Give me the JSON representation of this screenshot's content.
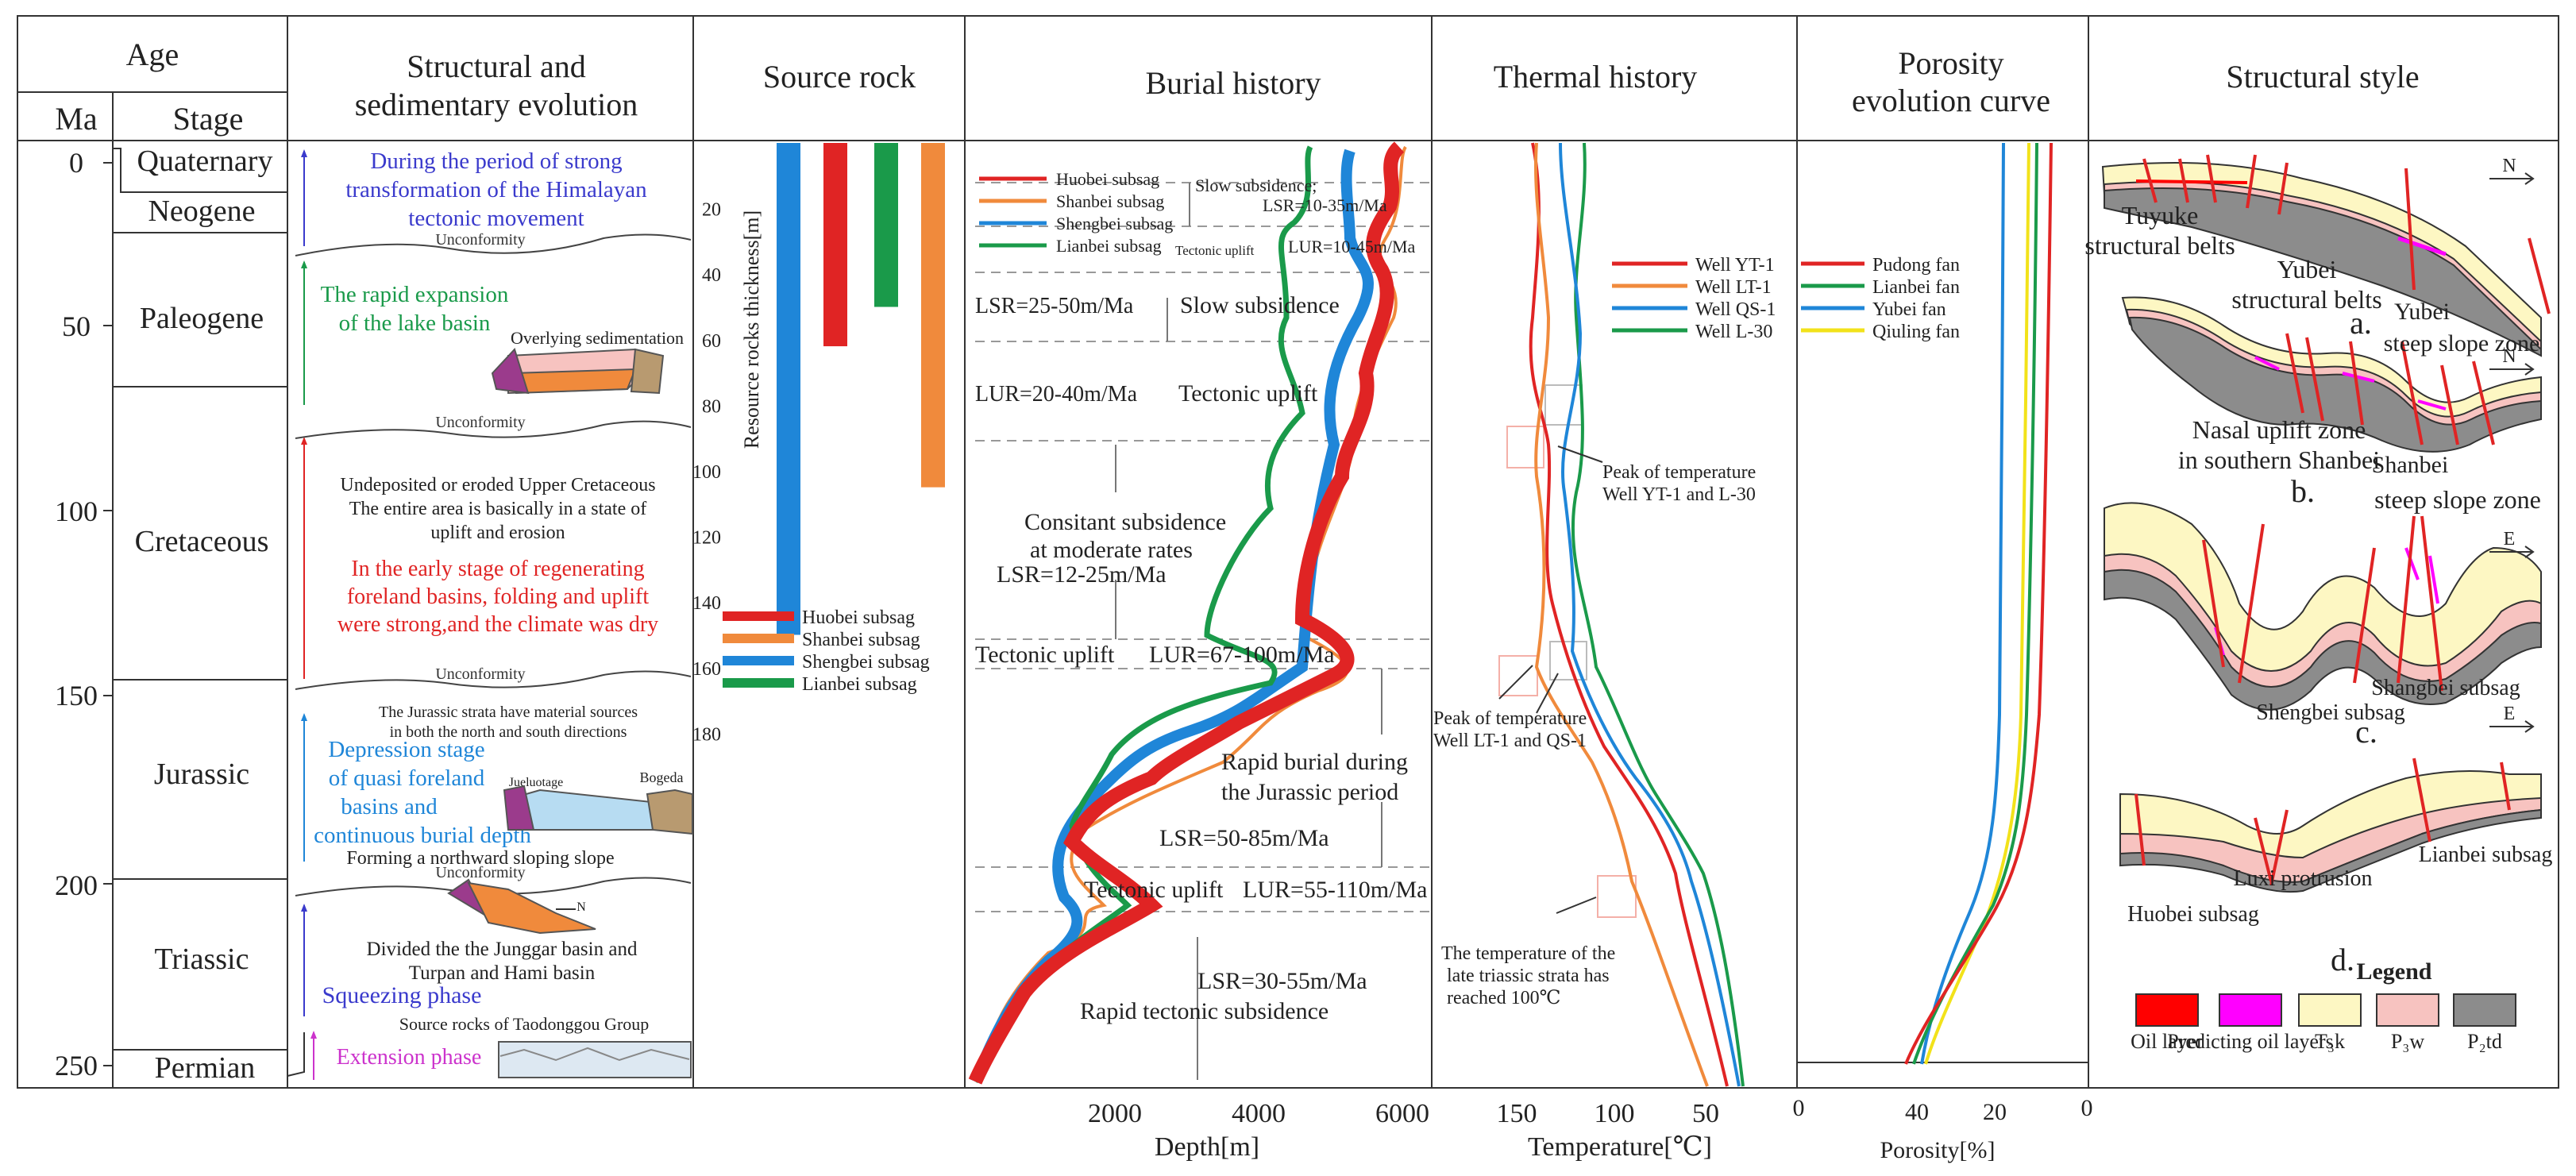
{
  "headers": {
    "age": "Age",
    "ma": "Ma",
    "stage": "Stage",
    "structural": [
      "Structural and",
      "sedimentary evolution"
    ],
    "source_rock": "Source rock",
    "burial": "Burial history",
    "thermal": "Thermal history",
    "porosity": [
      "Porosity",
      "evolution curve"
    ],
    "style": "Structural style"
  },
  "ma_ticks": [
    "0",
    "50",
    "100",
    "150",
    "200",
    "250"
  ],
  "stages": [
    "Quaternary",
    "Neogene",
    "Paleogene",
    "Cretaceous",
    "Jurassic",
    "Triassic",
    "Permian"
  ],
  "structural": {
    "himalayan": [
      "During the period of strong",
      "transformation of the Himalayan",
      "tectonic movement"
    ],
    "unconformity": "Unconformity",
    "lake": [
      "The rapid expansion",
      "of the lake basin"
    ],
    "overlying": "Overlying sedimentation",
    "cretaceous_black": [
      "Undeposited or eroded Upper Cretaceous",
      "The entire area is basically in a state of",
      "uplift and erosion"
    ],
    "cretaceous_red": [
      "In the early stage of regenerating",
      "foreland basins, folding and uplift",
      "were strong,and the climate was dry"
    ],
    "jurassic_small": [
      "The Jurassic strata have material sources",
      "in both the north and south directions"
    ],
    "jurassic_blue": [
      "Depression stage",
      "of quasi  foreland",
      "basins  and",
      "continuous burial depth"
    ],
    "jueluotage": "Jueluotage",
    "bogeda": "Bogeda",
    "northward": "Forming a northward sloping slope",
    "n_label": "N",
    "triassic": [
      "Divided the the Junggar basin and",
      "Turpan and Hami basin"
    ],
    "squeezing": "Squeezing phase",
    "source_rocks_tao": "Source rocks of Taodonggou Group",
    "extension": "Extension phase"
  },
  "source_rock": {
    "axis_label": "Resource rocks thickness[m]",
    "ticks": [
      "20",
      "40",
      "60",
      "80",
      "100",
      "120",
      "140",
      "160",
      "180"
    ],
    "bars": [
      {
        "name": "Shengbei subsag",
        "value": 150,
        "color": "#1f86d8"
      },
      {
        "name": "Huobei subsag",
        "value": 62,
        "color": "#e02424"
      },
      {
        "name": "Lianbei subsag",
        "value": 50,
        "color": "#1a9a4a"
      },
      {
        "name": "Shanbei subsag",
        "value": 105,
        "color": "#f08a3c"
      }
    ],
    "legend": [
      {
        "name": "Huobei subsag",
        "color": "#e02424"
      },
      {
        "name": "Shanbei subsag",
        "color": "#f08a3c"
      },
      {
        "name": "Shengbei subsag",
        "color": "#1f86d8"
      },
      {
        "name": "Lianbei subsag",
        "color": "#1a9a4a"
      }
    ]
  },
  "burial": {
    "legend": [
      "Huobei subsag",
      "Shanbei subsag",
      "Shengbei subsag",
      "Lianbei subsag"
    ],
    "annotations": {
      "slow1": [
        "Slow subsidence;",
        "LSR=10-35m/Ma"
      ],
      "uplift1": "Tectonic uplift",
      "lur1": "LUR=10-45m/Ma",
      "lsr2": "LSR=25-50m/Ma",
      "slow2": "Slow subsidence",
      "lur2": "LUR=20-40m/Ma",
      "uplift2": "Tectonic uplift",
      "constant": [
        "Consitant subsidence",
        "at moderate rates",
        "LSR=12-25m/Ma"
      ],
      "uplift3": "Tectonic uplift",
      "lur3": "LUR=67-100m/Ma",
      "rapid_burial": [
        "Rapid burial during",
        "the Jurassic period"
      ],
      "lsr4": "LSR=50-85m/Ma",
      "uplift4": "Tectonic uplift",
      "lur4": "LUR=55-110m/Ma",
      "lsr5": "LSR=30-55m/Ma",
      "rapid_tectonic": "Rapid tectonic subsidence"
    },
    "x_ticks": [
      "2000",
      "4000",
      "6000"
    ],
    "x_label": "Depth[m]"
  },
  "thermal": {
    "legend": [
      "Well YT-1",
      "Well LT-1",
      "Well QS-1",
      "Well L-30"
    ],
    "peak1": [
      "Peak of temperature",
      "Well YT-1 and L-30"
    ],
    "peak2": [
      "Peak of temperature",
      "Well LT-1 and QS-1"
    ],
    "late": [
      "The temperature of the",
      "late triassic strata has",
      "reached 100℃"
    ],
    "x_ticks": [
      "150",
      "100",
      "50"
    ],
    "x_label": "Temperature[℃]"
  },
  "porosity": {
    "legend": [
      "Pudong  fan",
      "Lianbei  fan",
      "Yubei  fan",
      "Qiuling  fan"
    ],
    "x_ticks": [
      "0",
      "40",
      "20",
      "0"
    ],
    "x_label": "Porosity[%]"
  },
  "style": {
    "n": "N",
    "e": "E",
    "tuyuke": [
      "Tuyuke",
      "structural belts"
    ],
    "yubei_belts": [
      "Yubei",
      "structural belts"
    ],
    "yubei_steep": [
      "Yubei",
      "steep slope zone"
    ],
    "a": "a.",
    "nasal": [
      "Nasal uplift zone",
      "in southern Shanbei"
    ],
    "shanbei_steep": [
      "Shanbei",
      "steep slope zone"
    ],
    "b": "b.",
    "shengbei": "Shengbei subsag",
    "shangbei": "Shangbei subsag",
    "c": "c.",
    "lianbei": "Lianbei subsag",
    "luxi": "Luxi protrusion",
    "huobei": "Huobei subsag",
    "d": "d.",
    "legend_title": "Legend",
    "legend": [
      {
        "label": "Oil  layer",
        "color": "#ff0000"
      },
      {
        "label": "Predicting oil layers",
        "color": "#ff00ff"
      },
      {
        "label": "T₃k",
        "color": "#fdf7c3"
      },
      {
        "label": "P₃w",
        "color": "#f7c3c0"
      },
      {
        "label": "P₂td",
        "color": "#8c8c8c"
      }
    ]
  },
  "colors": {
    "red": "#e02424",
    "orange": "#f08a3c",
    "blue": "#1f86d8",
    "green": "#1a9a4a",
    "yellow": "#f2e21a"
  }
}
